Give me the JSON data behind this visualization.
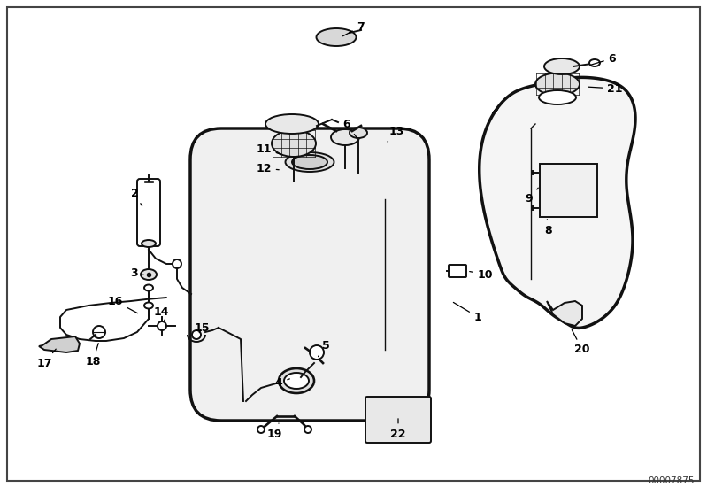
{
  "bg_color": "#ffffff",
  "image_id": "00007875",
  "fig_width": 7.99,
  "fig_height": 5.59,
  "dpi": 100
}
